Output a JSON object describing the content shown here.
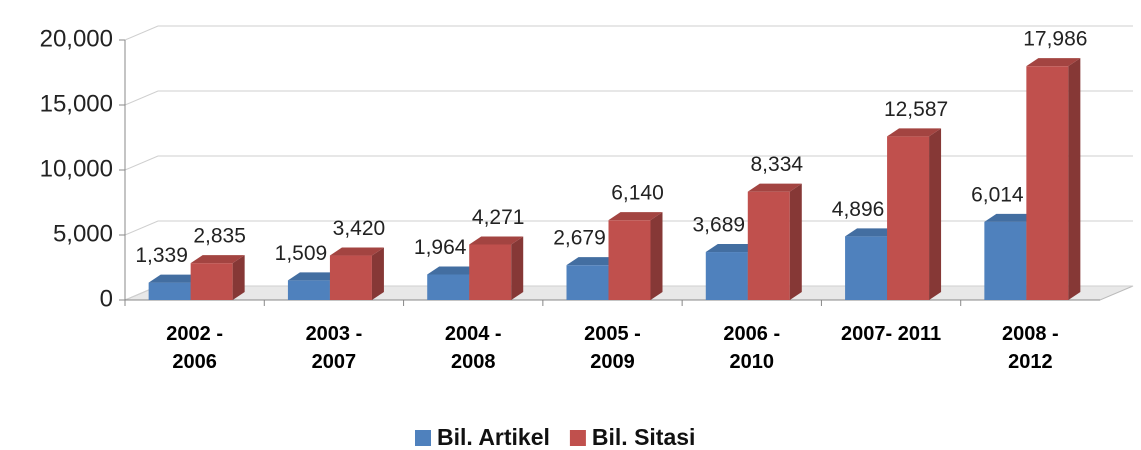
{
  "chart_data": {
    "type": "bar3d",
    "categories": [
      "2002 -\n2006",
      "2003 -\n2007",
      "2004 -\n2008",
      "2005 -\n2009",
      "2006 -\n2010",
      "2007- 2011",
      "2008 -\n2012"
    ],
    "series": [
      {
        "name": "Bil. Artikel",
        "color": "#4f81bd",
        "values": [
          1339,
          1509,
          1964,
          2679,
          3689,
          4896,
          6014
        ],
        "value_labels": [
          "1,339",
          "1,509",
          "1,964",
          "2,679",
          "3,689",
          "4,896",
          "6,014"
        ]
      },
      {
        "name": "Bil. Sitasi",
        "color": "#c0504d",
        "values": [
          2835,
          3420,
          4271,
          6140,
          8334,
          12587,
          17986
        ],
        "value_labels": [
          "2,835",
          "3,420",
          "4,271",
          "6,140",
          "8,334",
          "12,587",
          "17,986"
        ]
      }
    ],
    "ylim": [
      0,
      20000
    ],
    "yticks": [
      0,
      {
        "value": 5000,
        "label": "5,000"
      },
      {
        "value": 10000,
        "label": "10,000"
      },
      {
        "value": 15000,
        "label": "15,000"
      },
      {
        "value": 20000,
        "label": "20,000"
      }
    ],
    "grid": true,
    "legend": "bottom"
  }
}
